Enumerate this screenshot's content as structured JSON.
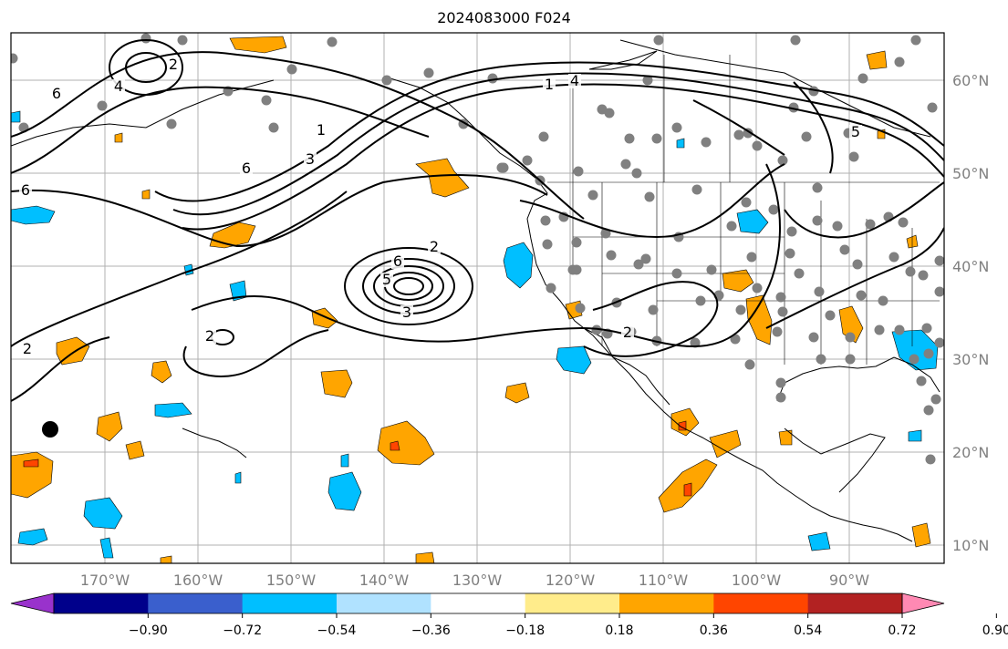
{
  "title": "2024083000 F024",
  "map": {
    "lon_labels": [
      "170°W",
      "160°W",
      "150°W",
      "140°W",
      "130°W",
      "120°W",
      "110°W",
      "100°W",
      "90°W"
    ],
    "lat_labels": [
      "60°N",
      "50°N",
      "40°N",
      "30°N",
      "20°N",
      "10°N"
    ],
    "contour_labels": [
      "6",
      "4",
      "6",
      "2",
      "3",
      "5",
      "2",
      "2",
      "4",
      "5",
      "3",
      "2",
      "1",
      "1",
      "2",
      "6",
      "6"
    ]
  },
  "colorbar": {
    "ticks": [
      "−0.90",
      "−0.72",
      "−0.54",
      "−0.36",
      "−0.18",
      "0.18",
      "0.36",
      "0.54",
      "0.72",
      "0.90"
    ],
    "colors": [
      "#9932cc",
      "#00008b",
      "#3a5fcd",
      "#00bfff",
      "#b0e2ff",
      "#ffffff",
      "#ffec8b",
      "#ffa500",
      "#ff4500",
      "#b22222",
      "#ff89b3"
    ]
  }
}
